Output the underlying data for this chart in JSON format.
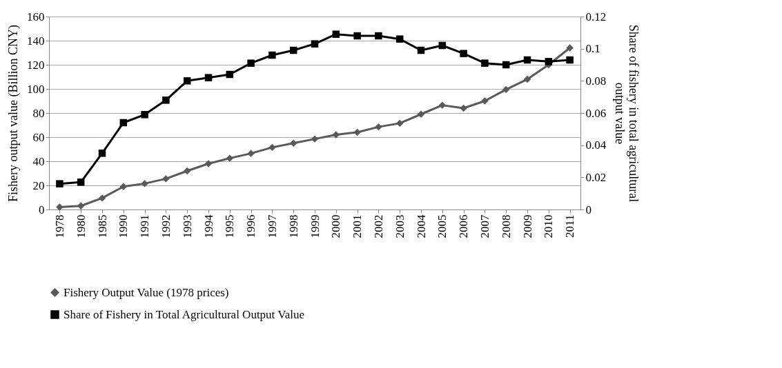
{
  "chart_data": {
    "type": "line",
    "categories": [
      "1978",
      "1980",
      "1985",
      "1990",
      "1991",
      "1992",
      "1993",
      "1994",
      "1995",
      "1996",
      "1997",
      "1998",
      "1999",
      "2000",
      "2001",
      "2002",
      "2003",
      "2004",
      "2005",
      "2006",
      "2007",
      "2008",
      "2009",
      "2010",
      "2011"
    ],
    "ylabel": "Fishery output value (Billion CNY)",
    "y2label": "Share of fishery in total agricultural output value",
    "ylim": [
      0,
      160
    ],
    "yticks": [
      0,
      20,
      40,
      60,
      80,
      100,
      120,
      140,
      160
    ],
    "y2lim": [
      0,
      0.12
    ],
    "y2ticks": [
      0,
      0.02,
      0.04,
      0.06,
      0.08,
      0.1,
      0.12
    ],
    "grid": "y",
    "legend": "bottom",
    "line_style": "solid",
    "series": [
      {
        "name": "Fishery Output Value (1978 prices)",
        "color": "#595959",
        "marker": "diamond",
        "values": [
          2,
          3,
          9.5,
          19,
          21.5,
          25.5,
          32,
          38,
          42.5,
          46.5,
          51.5,
          55,
          58.5,
          62,
          64,
          68.5,
          71.5,
          79,
          86.5,
          84,
          90,
          99.5,
          108,
          120,
          134
        ]
      },
      {
        "name": "Share of Fishery in Total Agricultural Output Value",
        "color": "#000000",
        "marker": "square",
        "axis": "y2",
        "values": [
          0.016,
          0.017,
          0.035,
          0.054,
          0.059,
          0.068,
          0.08,
          0.082,
          0.084,
          0.091,
          0.096,
          0.099,
          0.103,
          0.109,
          0.108,
          0.108,
          0.106,
          0.099,
          0.102,
          0.097,
          0.091,
          0.09,
          0.093,
          0.092,
          0.093
        ]
      }
    ]
  }
}
